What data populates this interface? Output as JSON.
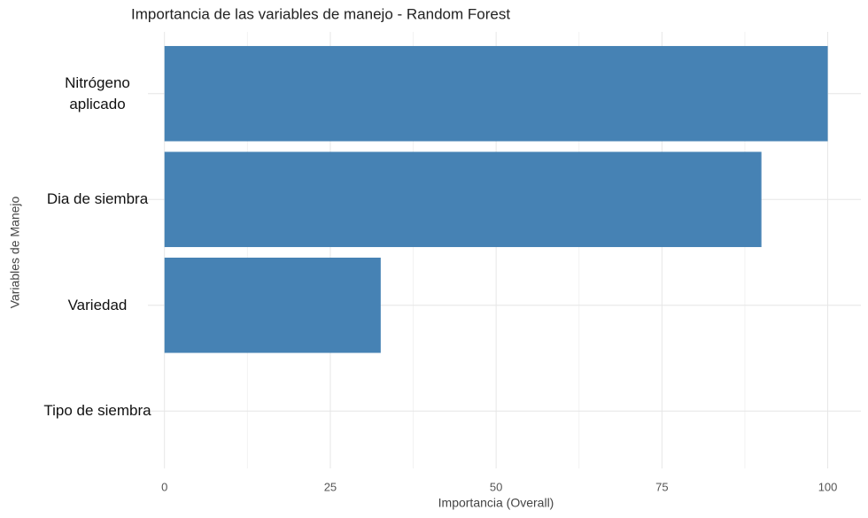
{
  "chart_data": {
    "type": "hbar",
    "title": "Importancia de las variables de manejo - Random Forest",
    "x_label": "Importancia (Overall)",
    "y_label": "Variables de Manejo",
    "categories": [
      "Nitrógeno aplicado",
      "Dia de siembra",
      "Variedad",
      "Tipo de siembra"
    ],
    "values": [
      100,
      90,
      32.6,
      0
    ],
    "color": "#4682b4",
    "xlim": [
      -2.5,
      105
    ],
    "xticks": [
      0,
      25,
      50,
      75,
      100
    ],
    "grid": true
  }
}
